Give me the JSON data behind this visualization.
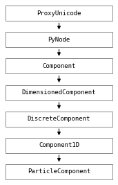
{
  "nodes": [
    "ProxyUnicode",
    "PyNode",
    "Component",
    "DimensionedComponent",
    "DiscreteComponent",
    "Component1D",
    "ParticleComponent"
  ],
  "box_color": "#ffffff",
  "box_edge_color": "#888888",
  "text_color": "#000000",
  "arrow_color": "#000000",
  "background_color": "#ffffff",
  "font_size": 6.5,
  "font_family": "DejaVu Sans Mono"
}
